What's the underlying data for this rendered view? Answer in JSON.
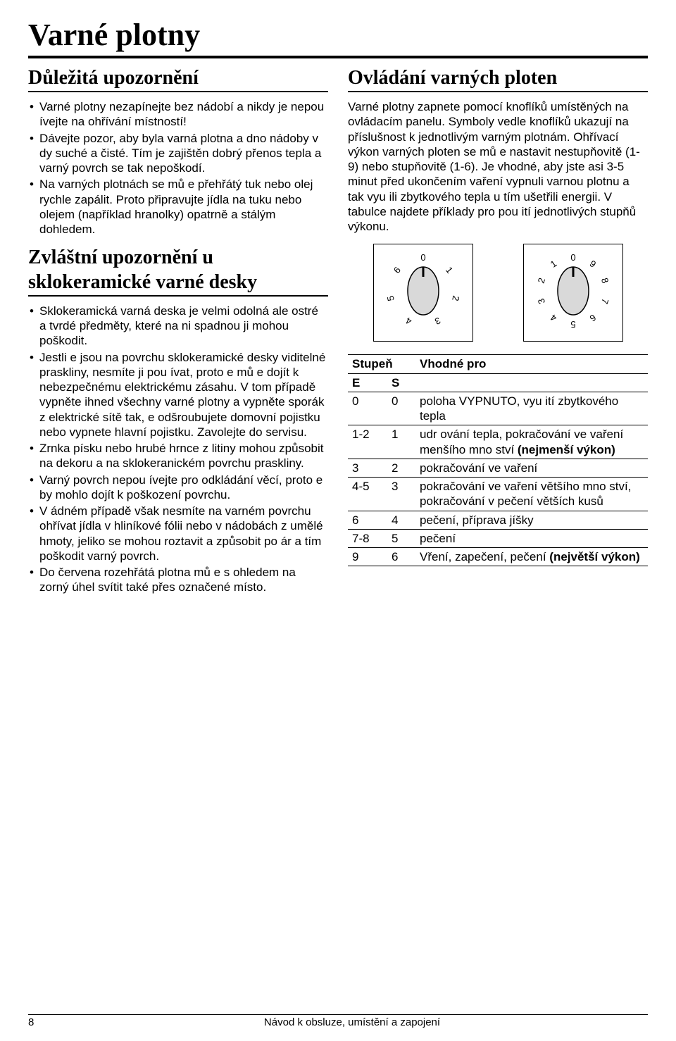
{
  "title": "Varné plotny",
  "left": {
    "h1": "Důležitá upozornění",
    "bullets1": [
      "Varné plotny nezapínejte bez nádobí a nikdy je nepou ívejte na ohřívání místností!",
      "Dávejte pozor, aby byla varná plotna a dno nádoby v dy suché a čisté. Tím je zajištěn dobrý přenos tepla a varný povrch se tak nepoškodí.",
      "Na varných plotnách se mů e přehřátý tuk nebo olej rychle zapálit. Proto připravujte jídla na tuku nebo olejem (například hranolky) opatrně a stálým dohledem."
    ],
    "h2a": "Zvláštní upozornění u",
    "h2b": "sklokeramické varné desky",
    "bullets2": [
      "Sklokeramická varná deska je velmi odolná ale ostré a tvrdé předměty, které na ni spadnou ji mohou poškodit.",
      "Jestli e jsou na povrchu sklokeramické desky viditelné praskliny, nesmíte ji pou ívat, proto e mů e dojít k nebezpečnému elektrickému zásahu. V tom případě vypněte ihned všechny varné plotny a vypněte sporák z elektrické sítě tak, e odšroubujete domovní pojistku nebo vypnete hlavní pojistku. Zavolejte do servisu.",
      "Zrnka písku nebo hrubé hrnce z litiny mohou způsobit na dekoru a na sklokeranickém povrchu praskliny.",
      "Varný povrch nepou ívejte pro odkládání věcí, proto e by mohlo dojít k poškození povrchu.",
      "V ádném případě však nesmíte na varném povrchu ohřívat jídla v hliníkové fólii nebo v nádobách z umělé hmoty, jeliko  se mohou roztavit a způsobit po ár a tím poškodit varný povrch.",
      "Do červena rozehřátá plotna mů e s ohledem na zorný úhel svítit také přes označené místo."
    ]
  },
  "right": {
    "h1": "Ovládání varných ploten",
    "para": "Varné plotny zapnete pomocí knoflíků umístěných na ovládacím panelu. Symboly vedle knoflíků ukazují na příslušnost k jednotlivým varným plotnám. Ohřívací výkon varných ploten se mů e nastavit nestupňovitě (1-9) nebo stupňovitě (1-6). Je vhodné, aby jste asi 3-5 minut před ukončením vaření vypnuli varnou plotnu a tak vyu ili zbytkového tepla u tím ušetřili energii. V tabulce najdete příklady pro pou ití jednotlivých stupňů výkonu.",
    "dials": {
      "type": "dial-pair",
      "dial1": {
        "positions": 7,
        "labels": [
          "0",
          "1",
          "2",
          "3",
          "4",
          "5",
          "6"
        ],
        "box_border": "#000000"
      },
      "dial2": {
        "positions": 10,
        "labels": [
          "0",
          "1",
          "2",
          "3",
          "4",
          "5",
          "6",
          "7",
          "8",
          "9"
        ],
        "box_border": "#000000"
      },
      "knob_fill": "#d9d9d9",
      "ring_color": "#000000",
      "pointer_color": "#000000",
      "label_fontsize": 13
    },
    "table": {
      "header_main": "Stupeň",
      "header_desc": "Vhodné pro",
      "sub_e": "E",
      "sub_s": "S",
      "rows": [
        {
          "e": "0",
          "s": "0",
          "desc_pre": "poloha VYPNUTO, vyu ití zbytkového tepla",
          "desc_bold": ""
        },
        {
          "e": "1-2",
          "s": "1",
          "desc_pre": "udr ování tepla, pokračování ve vaření menšího mno ství ",
          "desc_bold": "(nejmenší výkon)"
        },
        {
          "e": "3",
          "s": "2",
          "desc_pre": "pokračování ve vaření",
          "desc_bold": ""
        },
        {
          "e": "4-5",
          "s": "3",
          "desc_pre": "pokračování ve vaření většího mno ství, pokračování v pečení větších kusů",
          "desc_bold": ""
        },
        {
          "e": "6",
          "s": "4",
          "desc_pre": "pečení, příprava jíšky",
          "desc_bold": ""
        },
        {
          "e": "7-8",
          "s": "5",
          "desc_pre": "pečení",
          "desc_bold": ""
        },
        {
          "e": "9",
          "s": "6",
          "desc_pre": "Vření, zapečení, pečení ",
          "desc_bold": "(největší výkon)"
        }
      ]
    }
  },
  "footer": {
    "page": "8",
    "text": "Návod k obsluze, umístění a zapojení"
  }
}
